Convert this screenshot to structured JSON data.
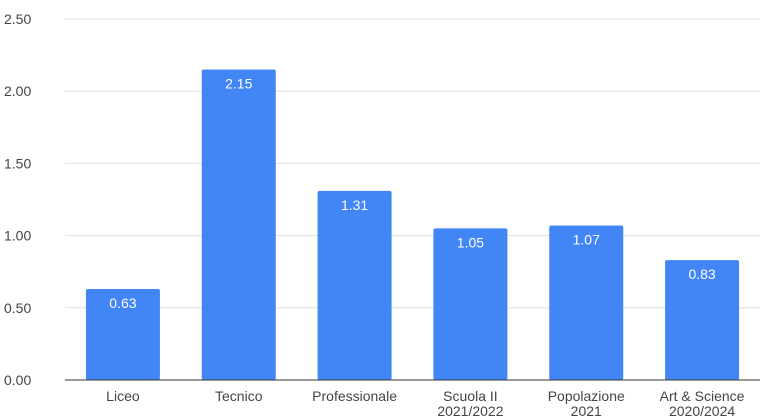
{
  "chart_data": {
    "type": "bar",
    "categories": [
      [
        "Liceo"
      ],
      [
        "Tecnico"
      ],
      [
        "Professionale"
      ],
      [
        "Scuola II",
        "2021/2022"
      ],
      [
        "Popolazione",
        "2021"
      ],
      [
        "Art & Science",
        "2020/2024"
      ]
    ],
    "values": [
      0.63,
      2.15,
      1.31,
      1.05,
      1.07,
      0.83
    ],
    "data_labels": [
      "0.63",
      "2.15",
      "1.31",
      "1.05",
      "1.07",
      "0.83"
    ],
    "y_ticks": [
      "0.00",
      "0.50",
      "1.00",
      "1.50",
      "2.00",
      "2.50"
    ],
    "ylim": [
      0,
      2.5
    ],
    "title": "",
    "xlabel": "",
    "ylabel": "",
    "grid": true,
    "legend": "none",
    "bar_color": "#4285f4"
  }
}
